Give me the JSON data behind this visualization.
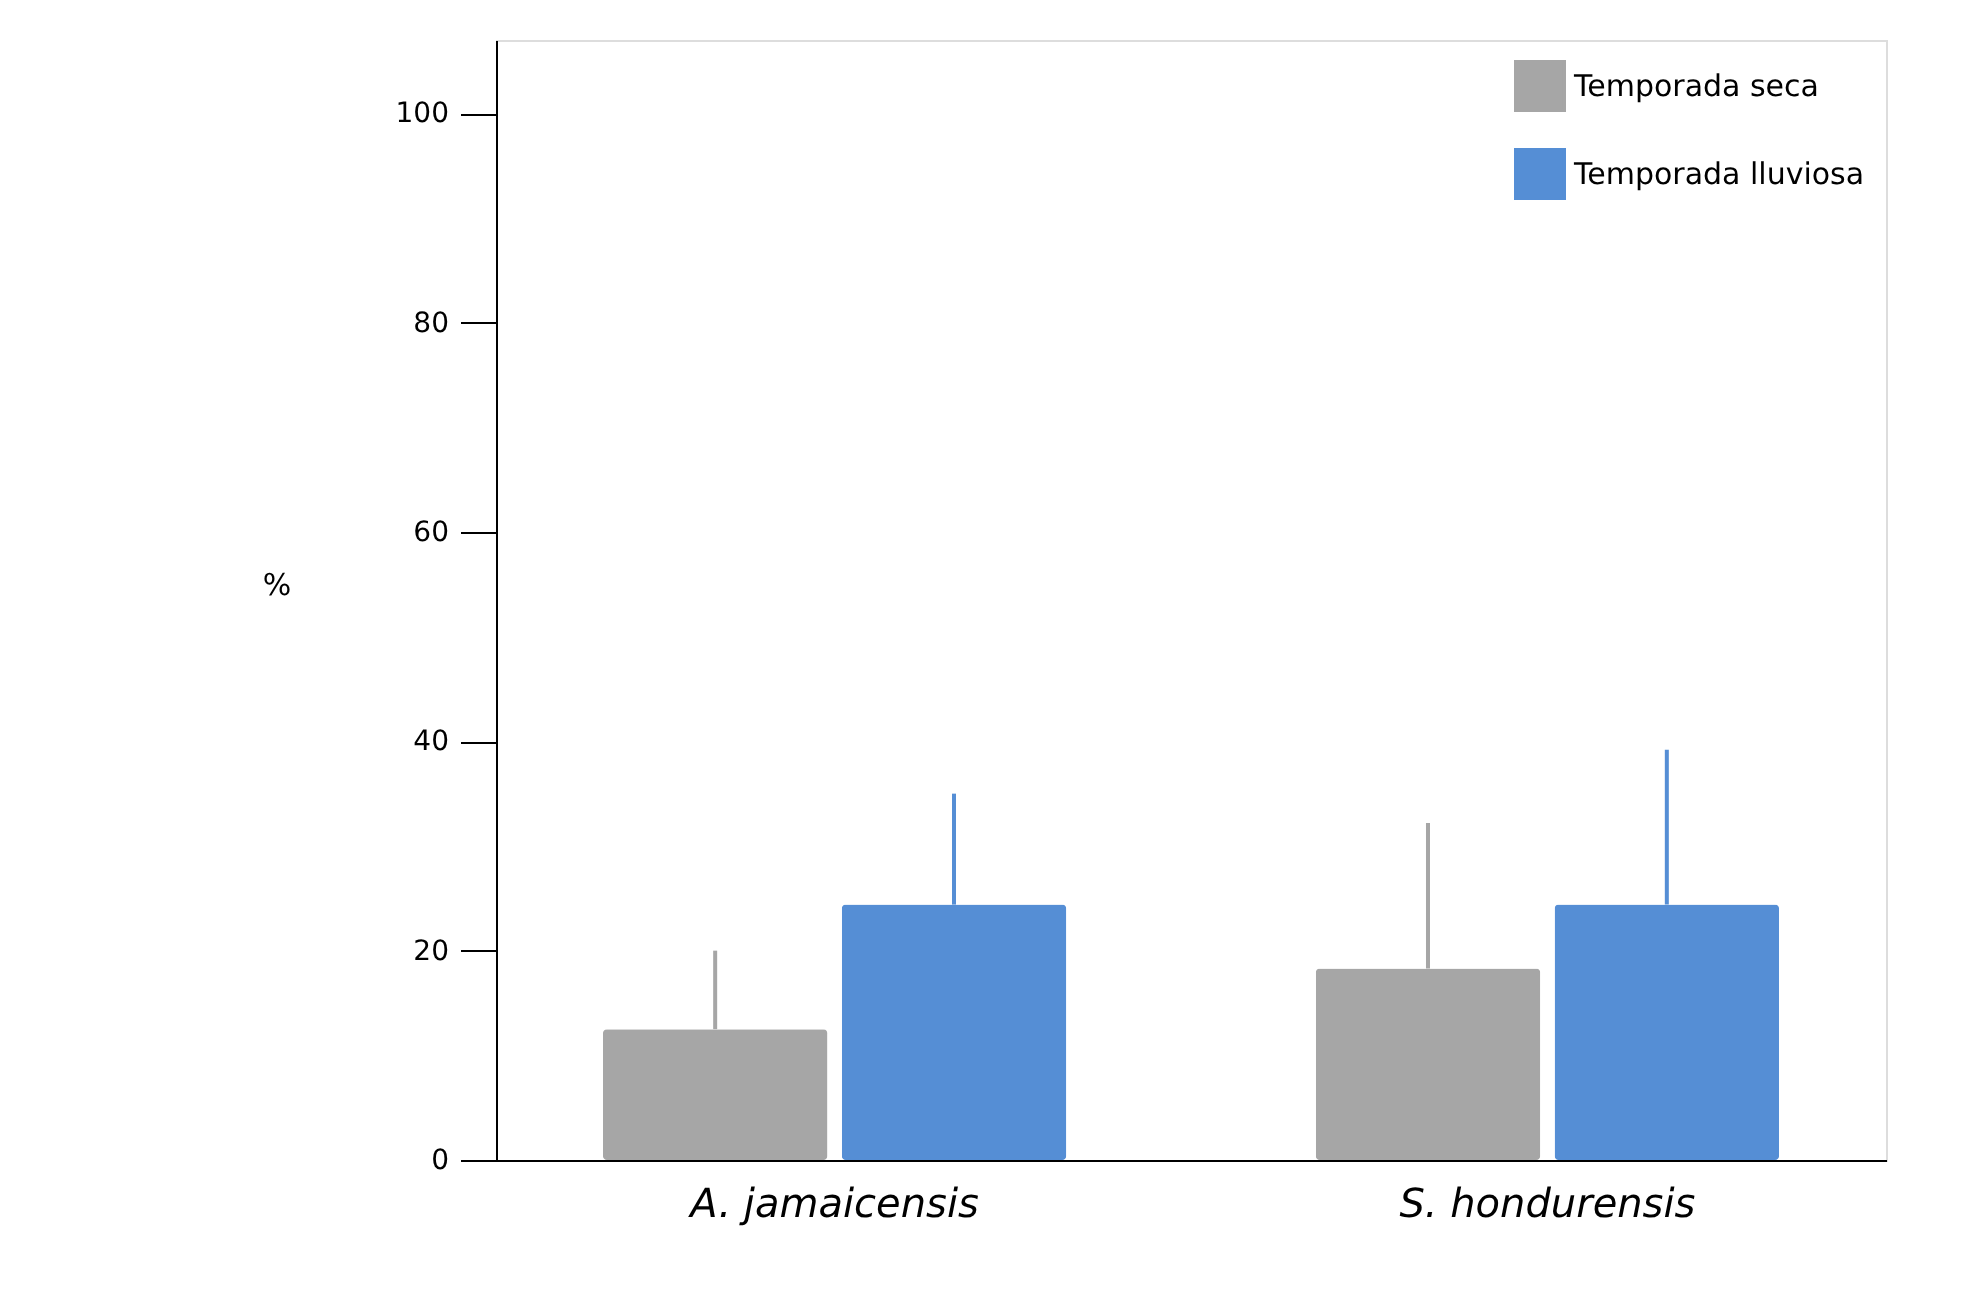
{
  "chart_data": {
    "type": "bar",
    "ylabel": "%",
    "categories": [
      "A. jamaicensis",
      "S. hondurensis"
    ],
    "series": [
      {
        "name": "Temporada seca",
        "color": "#a6a6a6",
        "values": [
          12.5,
          18.3
        ],
        "errors": [
          [
            12.5,
            20
          ],
          [
            18.3,
            32.2
          ]
        ]
      },
      {
        "name": "Temporada lluviosa",
        "color": "#558ed5",
        "values": [
          24.4,
          24.4
        ],
        "errors": [
          [
            24.4,
            35
          ],
          [
            24.4,
            39.2
          ]
        ]
      }
    ],
    "ylim": [
      0,
      107
    ],
    "yticks": [
      0,
      20,
      40,
      60,
      80,
      100
    ],
    "grid": false,
    "legend": "top right"
  }
}
